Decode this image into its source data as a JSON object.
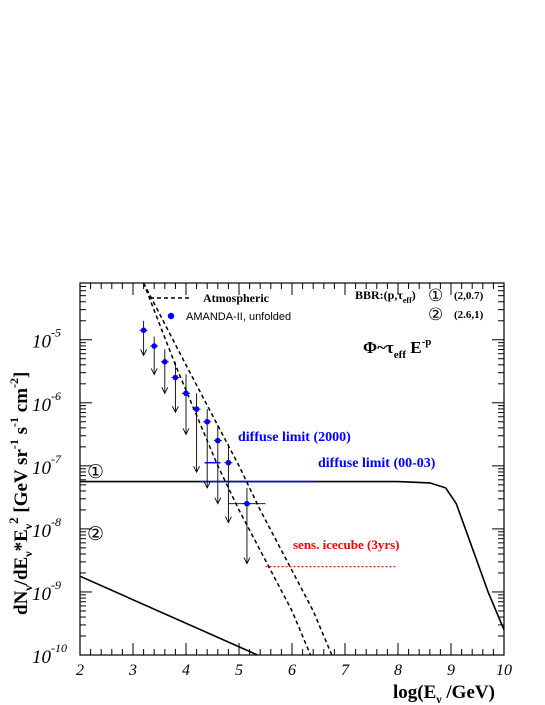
{
  "chart_data": {
    "type": "line",
    "xlabel": "log(E",
    "xlabel_sub": "ν",
    "xlabel_tail": " /GeV)",
    "ylabel": "dN/dE*E² [GeV sr⁻¹ s⁻¹ cm⁻²]",
    "xlim": [
      2,
      10
    ],
    "ylim_log10": [
      -10,
      -4.1
    ],
    "x_ticks": [
      2,
      3,
      4,
      5,
      6,
      7,
      8,
      9,
      10
    ],
    "y_ticks": [
      {
        "base": "10",
        "exp": "-5",
        "value": -5
      },
      {
        "base": "10",
        "exp": "-6",
        "value": -6
      },
      {
        "base": "10",
        "exp": "-7",
        "value": -7
      },
      {
        "base": "10",
        "exp": "-8",
        "value": -8
      },
      {
        "base": "10",
        "exp": "-9",
        "value": -9
      },
      {
        "base": "10",
        "exp": "-10",
        "value": -10
      }
    ],
    "legend": {
      "atmospheric": "Atmospheric",
      "amanda": "AMANDA-II, unfolded",
      "bbr_title": "BBR:(p,τ",
      "bbr_title_sub": "eff",
      "bbr_title_tail": ")",
      "bbr_1_marker": "①",
      "bbr_1_params": "(2,0.7)",
      "bbr_2_marker": "②",
      "bbr_2_params": "(2.6,1)"
    },
    "formula": {
      "phi": "Φ~τ",
      "sub": "eff",
      "e": " E",
      "sup": "-p"
    },
    "curve_labels": {
      "one": "①",
      "two": "②"
    },
    "annotations": {
      "diffuse_2000": "diffuse limit (2000)",
      "diffuse_0003": "diffuse limit (00-03)",
      "icecube": "sens. icecube (3yrs)"
    },
    "series": [
      {
        "name": "Atmospheric",
        "style": "dashed",
        "lower": [
          [
            3.2,
            -4.05
          ],
          [
            3.8,
            -5.4
          ],
          [
            4.2,
            -6.2
          ],
          [
            4.6,
            -7.0
          ],
          [
            5.0,
            -7.7
          ],
          [
            5.5,
            -8.5
          ],
          [
            6.0,
            -9.3
          ],
          [
            6.35,
            -10.0
          ]
        ],
        "upper": [
          [
            3.2,
            -4.05
          ],
          [
            4.0,
            -5.4
          ],
          [
            4.5,
            -6.2
          ],
          [
            5.0,
            -7.0
          ],
          [
            5.4,
            -7.7
          ],
          [
            5.9,
            -8.5
          ],
          [
            6.4,
            -9.3
          ],
          [
            6.75,
            -10.0
          ]
        ]
      },
      {
        "name": "AMANDA-II, unfolded",
        "points": [
          {
            "x": 3.2,
            "y": -4.85,
            "lo": -5.25,
            "hi": -4.7
          },
          {
            "x": 3.4,
            "y": -5.1,
            "lo": -5.55,
            "hi": -4.95
          },
          {
            "x": 3.6,
            "y": -5.35,
            "lo": -5.85,
            "hi": -5.15
          },
          {
            "x": 3.8,
            "y": -5.6,
            "lo": -6.15,
            "hi": -5.35
          },
          {
            "x": 4.0,
            "y": -5.85,
            "lo": -6.5,
            "hi": -5.55
          },
          {
            "x": 4.2,
            "y": -6.1,
            "lo": -7.1,
            "hi": -5.85
          },
          {
            "x": 4.4,
            "y": -6.3,
            "lo": -7.35,
            "hi": -6.1
          },
          {
            "x": 4.6,
            "y": -6.6,
            "lo": -7.6,
            "hi": -6.35
          },
          {
            "x": 4.8,
            "y": -6.95,
            "lo": -7.9,
            "hi": -6.65
          },
          {
            "x": 5.15,
            "y": -7.6,
            "lo": -8.55,
            "hi": -7.35,
            "xerr": [
              4.8,
              5.5
            ]
          }
        ]
      },
      {
        "name": "BBR (2,0.7)",
        "points": [
          [
            2.0,
            -7.25
          ],
          [
            5.0,
            -7.25
          ],
          [
            8.0,
            -7.25
          ],
          [
            8.6,
            -7.27
          ],
          [
            8.9,
            -7.35
          ],
          [
            9.1,
            -7.6
          ],
          [
            9.4,
            -8.3
          ],
          [
            9.7,
            -9.0
          ],
          [
            10.0,
            -9.6
          ]
        ]
      },
      {
        "name": "BBR (2.6,1)",
        "points": [
          [
            2.0,
            -8.75
          ],
          [
            5.35,
            -10.0
          ]
        ]
      },
      {
        "name": "diffuse limit (2000)",
        "points": [
          [
            4.35,
            -6.95
          ],
          [
            4.65,
            -6.95
          ]
        ]
      },
      {
        "name": "diffuse limit (00-03)",
        "points": [
          [
            4.25,
            -7.25
          ],
          [
            6.45,
            -7.25
          ]
        ]
      },
      {
        "name": "sens. icecube (3yrs)",
        "points": [
          [
            5.5,
            -8.6
          ],
          [
            7.95,
            -8.6
          ]
        ]
      }
    ],
    "colors": {
      "axes": "#000000",
      "amanda": "#0000ff",
      "diffuse": "#0000ff",
      "icecube": "#ff0000"
    },
    "grid": false,
    "legend_position": "top"
  }
}
